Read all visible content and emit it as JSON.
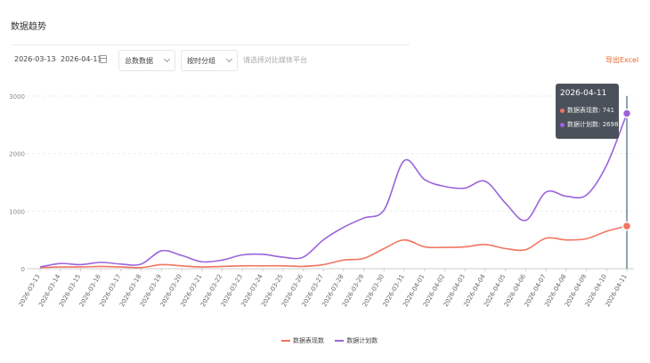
{
  "page": {
    "title": "数据趋势"
  },
  "toolbar": {
    "date_start": "2026-03-13",
    "date_separator": "-",
    "date_end": "2026-04-11",
    "select_1": "总数数据",
    "select_2": "按时分组",
    "search_placeholder": "请选择对比媒体平台",
    "export_label": "导出Excel"
  },
  "colors": {
    "series_a": "#f07560",
    "series_b": "#9c64dc",
    "crosshair": "#1f4e5a",
    "grid": "#ececec"
  },
  "tooltip": {
    "date": "2026-04-11",
    "row1_label": "数据表现数",
    "row1_value": "741",
    "row2_label": "数据计划数",
    "row2_value": "2698"
  },
  "legend": [
    {
      "label": "数据表现数",
      "color": "#f07560"
    },
    {
      "label": "数据计划数",
      "color": "#9c64dc"
    }
  ],
  "chart_data": {
    "type": "line",
    "x": [
      "2026-03-13",
      "2026-03-14",
      "2026-03-15",
      "2026-03-16",
      "2026-03-17",
      "2026-03-18",
      "2026-03-19",
      "2026-03-20",
      "2026-03-21",
      "2026-03-22",
      "2026-03-23",
      "2026-03-24",
      "2026-03-25",
      "2026-03-26",
      "2026-03-27",
      "2026-03-28",
      "2026-03-29",
      "2026-03-30",
      "2026-03-31",
      "2026-04-01",
      "2026-04-02",
      "2026-04-03",
      "2026-04-04",
      "2026-04-05",
      "2026-04-06",
      "2026-04-07",
      "2026-04-08",
      "2026-04-09",
      "2026-04-10",
      "2026-04-11"
    ],
    "series": [
      {
        "name": "数据表现数",
        "color": "#f07560",
        "values": [
          20,
          30,
          30,
          40,
          30,
          20,
          70,
          50,
          30,
          40,
          50,
          50,
          50,
          40,
          70,
          150,
          180,
          350,
          500,
          380,
          370,
          380,
          420,
          350,
          330,
          530,
          500,
          520,
          650,
          741
        ]
      },
      {
        "name": "数据计划数",
        "color": "#9c64dc",
        "values": [
          30,
          90,
          70,
          110,
          80,
          80,
          310,
          230,
          120,
          150,
          240,
          250,
          200,
          200,
          500,
          720,
          880,
          1020,
          1880,
          1550,
          1430,
          1400,
          1520,
          1140,
          840,
          1330,
          1260,
          1280,
          1800,
          2698
        ]
      }
    ],
    "ylim": [
      0,
      3000
    ],
    "yticks": [
      0,
      1000,
      2000,
      3000
    ],
    "grid": true,
    "legend_position": "bottom"
  }
}
